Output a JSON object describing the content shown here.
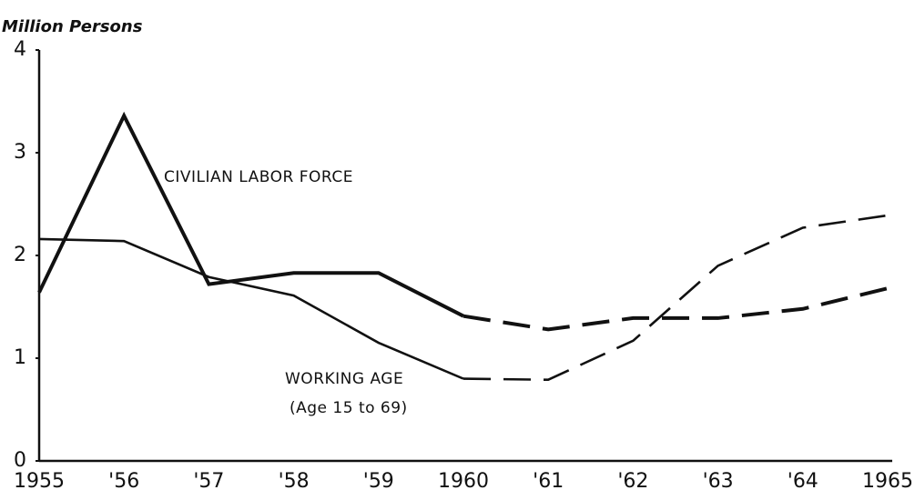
{
  "chart_data": {
    "type": "line",
    "y_label": "Million Persons",
    "categories": [
      "1955",
      "'56",
      "'57",
      "'58",
      "'59",
      "1960",
      "'61",
      "'62",
      "'63",
      "'64",
      "1965"
    ],
    "ylim": [
      0,
      4
    ],
    "yticks": [
      0,
      1,
      2,
      3,
      4
    ],
    "dash_start": "1960",
    "series": [
      {
        "name": "CIVILIAN LABOR FORCE",
        "color": "#111111",
        "line_width": 4,
        "values": [
          1.64,
          3.36,
          1.72,
          1.83,
          1.83,
          1.41,
          1.28,
          1.39,
          1.39,
          1.48,
          1.68
        ]
      },
      {
        "name": "WORKING AGE",
        "color": "#111111",
        "line_width": 2.6,
        "values": [
          2.16,
          2.14,
          1.79,
          1.61,
          1.15,
          0.8,
          0.79,
          1.17,
          1.9,
          2.27,
          2.39
        ]
      }
    ],
    "annotations": [
      "(Age 15 to 69)"
    ]
  }
}
